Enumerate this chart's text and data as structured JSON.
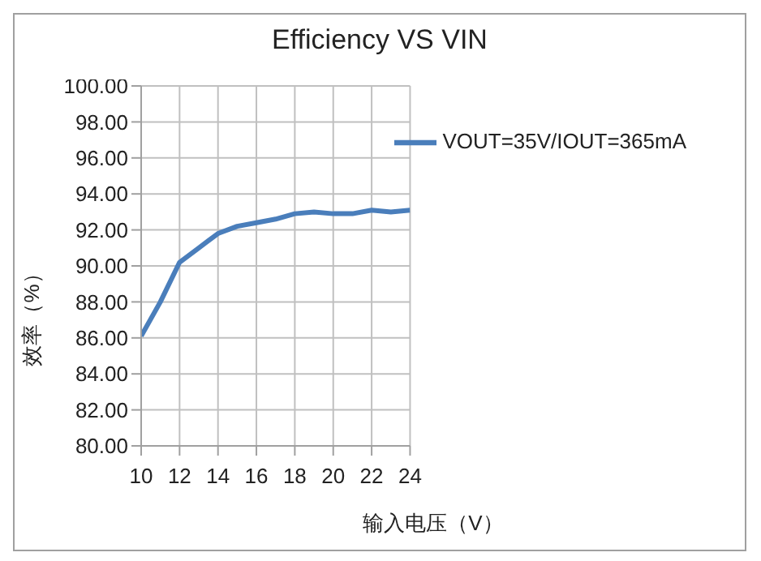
{
  "chart_data": {
    "type": "line",
    "title": "Efficiency VS VIN",
    "xlabel": "输入电压（V）",
    "ylabel": "效率（%）",
    "x": [
      10,
      11,
      12,
      13,
      14,
      15,
      16,
      17,
      18,
      19,
      20,
      21,
      22,
      23,
      24
    ],
    "series": [
      {
        "name": "VOUT=35V/IOUT=365mA",
        "color": "#4a7ebb",
        "values": [
          86.1,
          88.0,
          90.2,
          91.0,
          91.8,
          92.2,
          92.4,
          92.6,
          92.9,
          93.0,
          92.9,
          92.9,
          93.1,
          93.0,
          93.1
        ]
      }
    ],
    "xlim": [
      10,
      24
    ],
    "xticks": [
      10,
      12,
      14,
      16,
      18,
      20,
      22,
      24
    ],
    "ylim": [
      80,
      100
    ],
    "yticks": [
      {
        "value": 80,
        "label": "80.00"
      },
      {
        "value": 82,
        "label": "82.00"
      },
      {
        "value": 84,
        "label": "84.00"
      },
      {
        "value": 86,
        "label": "86.00"
      },
      {
        "value": 88,
        "label": "88.00"
      },
      {
        "value": 90,
        "label": "90.00"
      },
      {
        "value": 92,
        "label": "92.00"
      },
      {
        "value": 94,
        "label": "94.00"
      },
      {
        "value": 96,
        "label": "96.00"
      },
      {
        "value": 98,
        "label": "98.00"
      },
      {
        "value": 100,
        "label": "100.00"
      }
    ],
    "grid": true,
    "legend": "top right",
    "marker": "none",
    "line_style": "solid"
  }
}
